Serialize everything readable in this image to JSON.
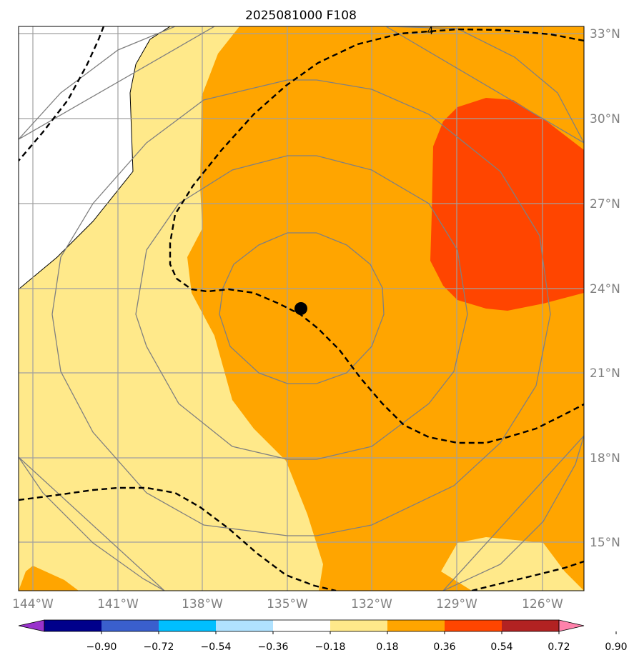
{
  "title": "2025081000 F108",
  "lon_ticks": [
    {
      "value": -144,
      "label": "144°W"
    },
    {
      "value": -141,
      "label": "141°W"
    },
    {
      "value": -138,
      "label": "138°W"
    },
    {
      "value": -135,
      "label": "135°W"
    },
    {
      "value": -132,
      "label": "132°W"
    },
    {
      "value": -129,
      "label": "129°W"
    },
    {
      "value": -126,
      "label": "126°W"
    }
  ],
  "lat_ticks": [
    {
      "value": 33,
      "label": "33°N"
    },
    {
      "value": 30,
      "label": "30°N"
    },
    {
      "value": 27,
      "label": "27°N"
    },
    {
      "value": 24,
      "label": "24°N"
    },
    {
      "value": 21,
      "label": "21°N"
    },
    {
      "value": 18,
      "label": "18°N"
    },
    {
      "value": 15,
      "label": "15°N"
    }
  ],
  "contour_label": "4",
  "storm_center": {
    "lon": -134.6,
    "lat": 23.3
  },
  "colorbar": {
    "levels": [
      "−0.90",
      "−0.72",
      "−0.54",
      "−0.36",
      "−0.18",
      "0.18",
      "0.36",
      "0.54",
      "0.72",
      "0.90"
    ],
    "colors": [
      "#9932cc",
      "#00008b",
      "#3a5fcd",
      "#00bfff",
      "#b0e2ff",
      "#ffffff",
      "#ffe98a",
      "#ffa500",
      "#ff4500",
      "#b22222",
      "#ff82ab"
    ]
  },
  "colors": {
    "land_white": "#ffffff",
    "yellow": "#ffe98a",
    "orange": "#ffa500",
    "red": "#ff4500",
    "gridline": "#a0a0a0",
    "circle": "#808080"
  }
}
